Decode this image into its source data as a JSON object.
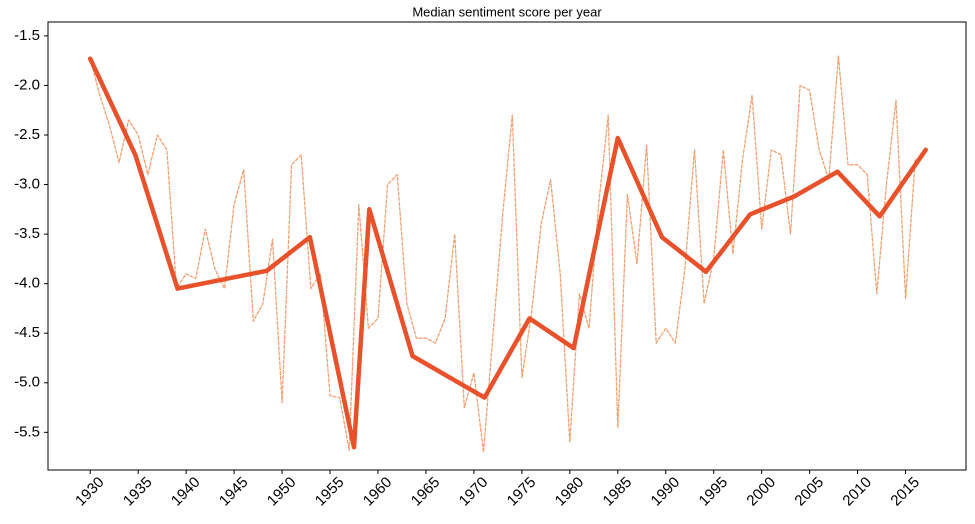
{
  "chart_data": {
    "type": "line",
    "title": "Median sentiment score per year",
    "xlim": [
      1925.6,
      2021.3
    ],
    "ylim": [
      -5.88,
      -1.36
    ],
    "xticks": [
      1930,
      1935,
      1940,
      1945,
      1950,
      1955,
      1960,
      1965,
      1970,
      1975,
      1980,
      1985,
      1990,
      1995,
      2000,
      2005,
      2010,
      2015
    ],
    "yticks": [
      -5.5,
      {
        "value": -5.0,
        "label": "-5.0"
      },
      -4.5,
      {
        "value": -4.0,
        "label": "-4.0"
      },
      -3.5,
      {
        "value": -3.0,
        "label": "-3.0"
      },
      -2.5,
      {
        "value": -2.0,
        "label": "-2.0"
      },
      -1.5
    ],
    "grid": false,
    "series": [
      {
        "color": "#f4a070",
        "style": "dashed",
        "width": 1.3,
        "x": [
          1930,
          1931,
          1932,
          1933,
          1934,
          1935,
          1936,
          1937,
          1938,
          1939,
          1940,
          1941,
          1942,
          1943,
          1944,
          1945,
          1946,
          1947,
          1948,
          1949,
          1950,
          1951,
          1952,
          1953,
          1954,
          1955,
          1956,
          1957,
          1958,
          1959,
          1960,
          1961,
          1962,
          1963,
          1964,
          1965,
          1966,
          1967,
          1968,
          1969,
          1970,
          1971,
          1972,
          1973,
          1974,
          1975,
          1976,
          1977,
          1978,
          1979,
          1980,
          1981,
          1982,
          1983,
          1984,
          1985,
          1986,
          1987,
          1988,
          1989,
          1990,
          1991,
          1992,
          1993,
          1994,
          1995,
          1996,
          1997,
          1998,
          1999,
          2000,
          2001,
          2002,
          2003,
          2004,
          2005,
          2006,
          2007,
          2008,
          2009,
          2010,
          2011,
          2012,
          2013,
          2014,
          2015,
          2016
        ],
        "values": [
          -1.73,
          -2.1,
          -2.4,
          -2.78,
          -2.35,
          -2.5,
          -2.9,
          -2.5,
          -2.65,
          -4.05,
          -3.9,
          -3.95,
          -3.45,
          -3.85,
          -4.05,
          -3.2,
          -2.85,
          -4.38,
          -4.2,
          -3.55,
          -5.2,
          -2.8,
          -2.7,
          -4.05,
          -3.9,
          -5.13,
          -5.15,
          -5.68,
          -3.2,
          -4.45,
          -4.35,
          -3.0,
          -2.9,
          -4.2,
          -4.55,
          -4.55,
          -4.6,
          -4.35,
          -3.5,
          -5.25,
          -4.9,
          -5.7,
          -4.5,
          -3.3,
          -2.3,
          -4.95,
          -4.3,
          -3.4,
          -2.95,
          -3.9,
          -5.6,
          -4.1,
          -4.45,
          -3.2,
          -2.3,
          -5.45,
          -3.1,
          -3.8,
          -2.6,
          -4.6,
          -4.45,
          -4.6,
          -3.85,
          -2.65,
          -4.2,
          -3.75,
          -2.65,
          -3.7,
          -2.75,
          -2.1,
          -3.45,
          -2.65,
          -2.7,
          -3.5,
          -2.0,
          -2.05,
          -2.65,
          -2.95,
          -1.7,
          -2.8,
          -2.8,
          -2.9,
          -4.1,
          -3.0,
          -2.15,
          -4.15,
          -2.75
        ]
      },
      {
        "color": "#e8512a",
        "style": "solid",
        "width": 4.5,
        "x": [
          1930,
          1934.7,
          1939.1,
          1948.4,
          1952.9,
          1957.5,
          1959.1,
          1963.6,
          1971.1,
          1975.8,
          1980.4,
          1985,
          1989.6,
          1994.2,
          1998.8,
          2003.4,
          2007.9,
          2012.3,
          2017.1
        ],
        "values": [
          -1.73,
          -2.7,
          -4.05,
          -3.87,
          -3.53,
          -5.65,
          -3.25,
          -4.73,
          -5.15,
          -4.35,
          -4.65,
          -2.53,
          -3.53,
          -3.88,
          -3.3,
          -3.12,
          -2.87,
          -3.32,
          -2.65
        ]
      }
    ]
  }
}
